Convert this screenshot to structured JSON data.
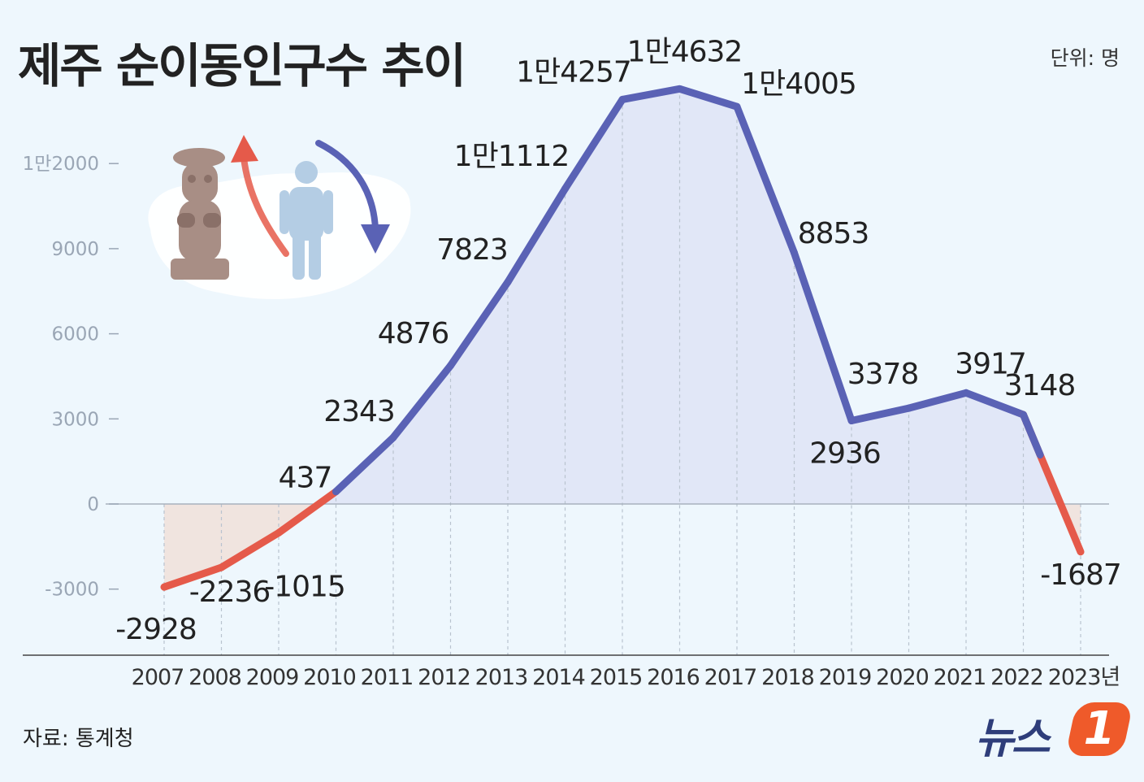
{
  "header": {
    "title": "제주 순이동인구수 추이",
    "unit": "단위: 명"
  },
  "footer": {
    "source": "자료: 통계청",
    "logo_text": "뉴스",
    "logo_badge": "1"
  },
  "colors": {
    "positive_line": "#5a62b5",
    "negative_line": "#e55a4a",
    "positive_area": "#dfe4f6",
    "negative_area": "#f0e4df",
    "background": "#eef7fd"
  },
  "illustration": {
    "icons": [
      "dol-hareubang-icon",
      "person-icon",
      "arrow-up-icon",
      "arrow-down-icon"
    ]
  },
  "chart_data": {
    "type": "line",
    "title": "제주 순이동인구수 추이",
    "x": [
      "2007",
      "2008",
      "2009",
      "2010",
      "2011",
      "2012",
      "2013",
      "2014",
      "2015",
      "2016",
      "2017",
      "2018",
      "2019",
      "2020",
      "2021",
      "2022",
      "2023"
    ],
    "x_tick_labels": [
      "2007",
      "2008",
      "2009",
      "2010",
      "2011",
      "2012",
      "2013",
      "2014",
      "2015",
      "2016",
      "2017",
      "2018",
      "2019",
      "2020",
      "2021",
      "2022",
      "2023년"
    ],
    "values": [
      -2928,
      -2236,
      -1015,
      437,
      2343,
      4876,
      7823,
      11112,
      14257,
      14632,
      14005,
      8853,
      2936,
      3378,
      3917,
      3148,
      -1687
    ],
    "value_labels": [
      "-2928",
      "-2236",
      "-1015",
      "437",
      "2343",
      "4876",
      "7823",
      "1만1112",
      "1만4257",
      "1만4632",
      "1만4005",
      "8853",
      "2936",
      "3378",
      "3917",
      "3148",
      "-1687"
    ],
    "y_ticks": [
      -3000,
      0,
      3000,
      6000,
      9000,
      12000
    ],
    "y_tick_labels": [
      "-3000",
      "0",
      "3000",
      "6000",
      "9000",
      "1만2000"
    ],
    "ylim": [
      -5500,
      15500
    ],
    "xlabel": "",
    "ylabel": "",
    "unit": "명",
    "source": "자료: 통계청",
    "grid": "vertical dashed"
  }
}
